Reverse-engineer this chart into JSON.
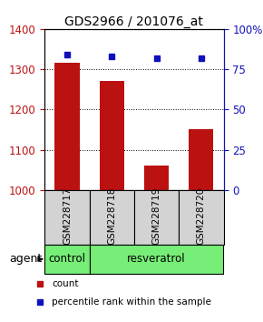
{
  "title": "GDS2966 / 201076_at",
  "samples": [
    "GSM228717",
    "GSM228718",
    "GSM228719",
    "GSM228720"
  ],
  "counts": [
    1315,
    1270,
    1060,
    1150
  ],
  "percentiles": [
    84,
    83,
    82,
    82
  ],
  "ylim_left": [
    1000,
    1400
  ],
  "ylim_right": [
    0,
    100
  ],
  "yticks_left": [
    1000,
    1100,
    1200,
    1300,
    1400
  ],
  "yticks_right": [
    0,
    25,
    50,
    75,
    100
  ],
  "yticklabels_right": [
    "0",
    "25",
    "50",
    "75",
    "100%"
  ],
  "bar_color": "#bb1111",
  "dot_color": "#1111bb",
  "bar_width": 0.55,
  "sample_box_color": "#d3d3d3",
  "group_box_color": "#77ee77",
  "title_fontsize": 10,
  "tick_fontsize": 8.5,
  "sample_label_fontsize": 7.5,
  "group_label_fontsize": 8.5,
  "legend_fontsize": 7.5
}
